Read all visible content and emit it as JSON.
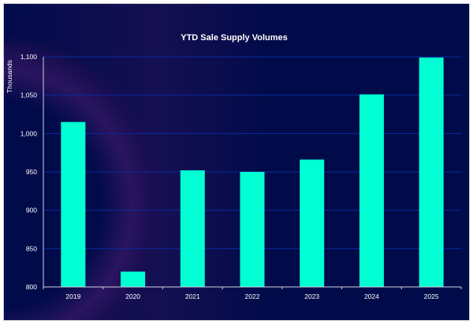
{
  "chart_data": {
    "type": "bar",
    "title": "YTD Sale Supply Volumes",
    "xlabel": "",
    "ylabel": "Thousands",
    "categories": [
      "2019",
      "2020",
      "2021",
      "2022",
      "2023",
      "2024",
      "2025"
    ],
    "values": [
      1015,
      820,
      952,
      950,
      966,
      1051,
      1099
    ],
    "ylim": [
      800,
      1100
    ],
    "yticks": [
      800,
      850,
      900,
      950,
      1000,
      1050,
      1100
    ],
    "ytick_labels": [
      "800",
      "850",
      "900",
      "950",
      "1,000",
      "1,050",
      "1,100"
    ],
    "grid": true,
    "legend": "none",
    "colors": {
      "bar": "#00ffd2",
      "background": "#020b4a",
      "grid": "#0a2a9a",
      "axis": "#d0d0e0"
    }
  }
}
